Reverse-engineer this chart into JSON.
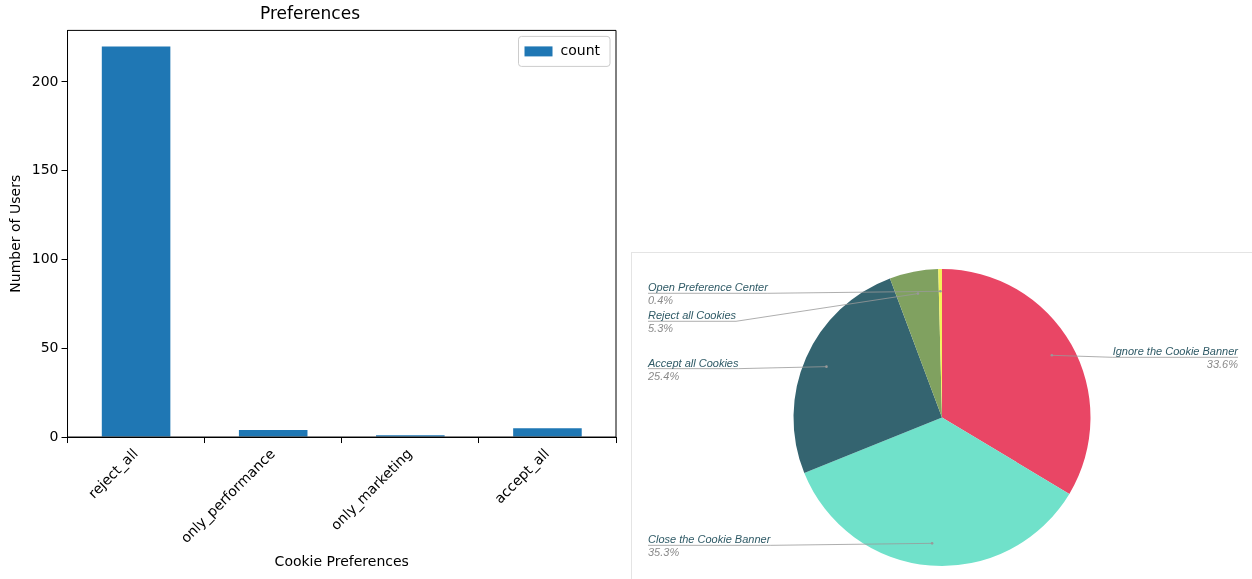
{
  "chart_data": [
    {
      "type": "bar",
      "title": "Preferences",
      "xlabel": "Cookie Preferences",
      "ylabel": "Number of Users",
      "categories": [
        "reject_all",
        "only_performance",
        "only_marketing",
        "accept_all"
      ],
      "series": [
        {
          "name": "count",
          "color": "#1f77b4",
          "values": [
            220,
            4,
            1,
            5
          ]
        }
      ],
      "ylim": [
        0,
        229
      ],
      "yticks": [
        0,
        50,
        100,
        150,
        200
      ],
      "grid": false,
      "legend": "top right"
    },
    {
      "type": "pie",
      "categories": [
        "Ignore the Cookie Banner",
        "Close the Cookie Banner",
        "Accept all Cookies",
        "Reject all Cookies",
        "Open Preference Center"
      ],
      "values": [
        33.6,
        35.3,
        25.4,
        5.3,
        0.4
      ],
      "colors": [
        "#e94665",
        "#70e1ca",
        "#346470",
        "#80a160",
        "#f2f25a"
      ],
      "value_labels": [
        "33.6%",
        "35.3%",
        "25.4%",
        "5.3%",
        "0.4%"
      ],
      "legend": false
    }
  ]
}
